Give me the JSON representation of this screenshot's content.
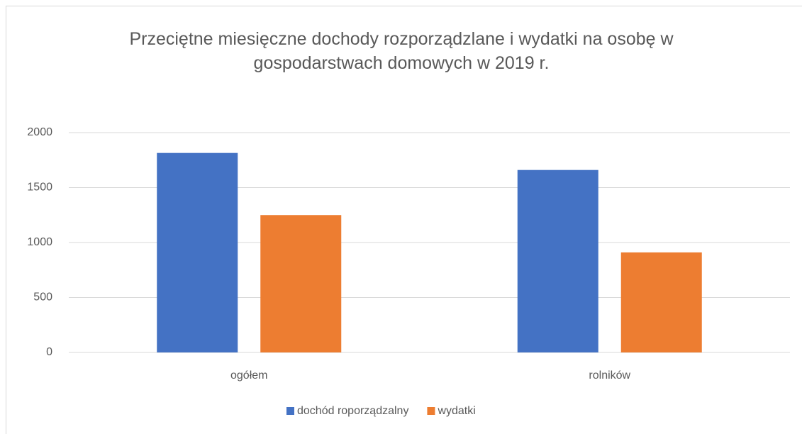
{
  "chart_data": {
    "type": "bar",
    "title": "Przeciętne miesięczne dochody rozporządzlane i wydatki na osobę w gospodarstwach domowych w 2019 r.",
    "categories": [
      "ogółem",
      "rolników"
    ],
    "series": [
      {
        "name": "dochód roporządzalny",
        "color": "#4472c4",
        "values": [
          1815,
          1660
        ]
      },
      {
        "name": "wydatki",
        "color": "#ed7d31",
        "values": [
          1250,
          910
        ]
      }
    ],
    "ylim": [
      0,
      2000
    ],
    "yticks": [
      0,
      500,
      1000,
      1500,
      2000
    ],
    "grid": true,
    "legend": "bottom"
  }
}
